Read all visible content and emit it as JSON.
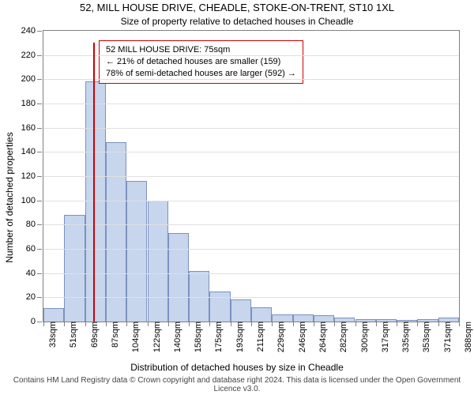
{
  "title": "52, MILL HOUSE DRIVE, CHEADLE, STOKE-ON-TRENT, ST10 1XL",
  "subtitle": "Size of property relative to detached houses in Cheadle",
  "ylabel": "Number of detached properties",
  "xlabel": "Distribution of detached houses by size in Cheadle",
  "footer": "Contains HM Land Registry data © Crown copyright and database right 2024. This data is licensed under the Open Government Licence v3.0.",
  "chart": {
    "type": "histogram",
    "background_color": "#ffffff",
    "grid_color": "#e0e0e0",
    "axis_color": "#808080",
    "bar_fill": "#c7d5ed",
    "bar_stroke": "#7a92bf",
    "bar_stroke_width": 1,
    "ylim": [
      0,
      240
    ],
    "ytick_step": 20,
    "x_bin_width_sqm": 17.5,
    "x_start_sqm": 33,
    "x_tick_labels": [
      "33sqm",
      "51sqm",
      "69sqm",
      "87sqm",
      "104sqm",
      "122sqm",
      "140sqm",
      "158sqm",
      "175sqm",
      "193sqm",
      "211sqm",
      "229sqm",
      "246sqm",
      "264sqm",
      "282sqm",
      "300sqm",
      "317sqm",
      "335sqm",
      "353sqm",
      "371sqm",
      "388sqm"
    ],
    "bar_values": [
      11,
      88,
      198,
      148,
      116,
      100,
      73,
      42,
      25,
      18,
      12,
      6,
      6,
      5,
      3,
      2,
      2,
      1,
      2,
      3
    ],
    "marker": {
      "sqm": 75,
      "color": "#cc0000",
      "width": 2,
      "height_value": 230
    },
    "info_box": {
      "border_color": "#cc0000",
      "line1": "52 MILL HOUSE DRIVE: 75sqm",
      "line2": "← 21% of detached houses are smaller (159)",
      "line3": "78% of semi-detached houses are larger (592) →"
    },
    "label_fontsize": 12,
    "tick_fontsize": 11,
    "title_fontsize": 13
  }
}
